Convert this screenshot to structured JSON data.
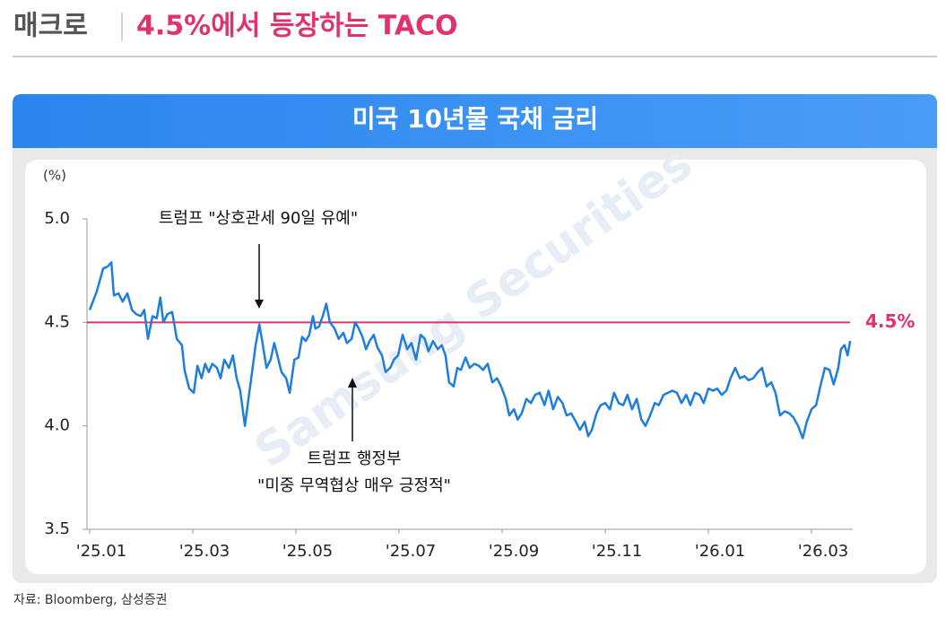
{
  "header": {
    "section": "매크로",
    "title": "4.5%에서 등장하는 TACO"
  },
  "chart_data": {
    "type": "line",
    "title": "미국 10년물 국채 금리",
    "y_unit": "(%)",
    "color": "#1f7de0",
    "x": [
      0.0,
      0.14,
      0.26,
      0.35,
      0.42,
      0.47,
      0.56,
      0.64,
      0.73,
      0.82,
      0.9,
      0.99,
      1.06,
      1.13,
      1.22,
      1.3,
      1.37,
      1.43,
      1.51,
      1.6,
      1.69,
      1.79,
      1.84,
      1.93,
      2.02,
      2.09,
      2.17,
      2.24,
      2.31,
      2.38,
      2.47,
      2.54,
      2.61,
      2.7,
      2.78,
      2.85,
      2.92,
      3.01,
      3.08,
      3.15,
      3.22,
      3.29,
      3.34,
      3.43,
      3.51,
      3.58,
      3.65,
      3.72,
      3.81,
      3.88,
      3.97,
      4.05,
      4.12,
      4.19,
      4.26,
      4.33,
      4.38,
      4.45,
      4.52,
      4.59,
      4.66,
      4.75,
      4.83,
      4.92,
      4.99,
      5.08,
      5.15,
      5.22,
      5.29,
      5.36,
      5.43,
      5.51,
      5.58,
      5.67,
      5.74,
      5.83,
      5.9,
      5.98,
      6.07,
      6.16,
      6.24,
      6.33,
      6.42,
      6.5,
      6.57,
      6.66,
      6.75,
      6.83,
      6.9,
      6.97,
      7.06,
      7.13,
      7.2,
      7.29,
      7.37,
      7.46,
      7.55,
      7.63,
      7.72,
      7.81,
      7.9,
      7.98,
      8.07,
      8.14,
      8.23,
      8.3,
      8.38,
      8.47,
      8.56,
      8.64,
      8.73,
      8.82,
      8.9,
      8.99,
      9.08,
      9.17,
      9.25,
      9.34,
      9.43,
      9.51,
      9.6,
      9.67,
      9.74,
      9.83,
      9.91,
      10.0,
      10.09,
      10.17,
      10.26,
      10.35,
      10.43,
      10.52,
      10.61,
      10.7,
      10.78,
      10.87,
      10.96,
      11.04,
      11.13,
      11.22,
      11.3,
      11.39,
      11.48,
      11.57,
      11.65,
      11.74,
      11.83,
      11.91,
      12.0,
      12.09,
      12.17,
      12.26,
      12.35,
      12.43,
      12.52,
      12.61,
      12.7,
      12.78,
      12.87,
      12.96,
      13.04,
      13.13,
      13.22,
      13.3,
      13.39,
      13.48,
      13.57,
      13.65,
      13.74,
      13.83,
      13.91,
      14.0,
      14.09,
      14.17,
      14.26,
      14.35,
      14.43,
      14.52,
      14.57,
      14.64,
      14.7,
      14.75
    ],
    "values": [
      4.56,
      4.65,
      4.76,
      4.77,
      4.79,
      4.63,
      4.64,
      4.6,
      4.64,
      4.56,
      4.54,
      4.53,
      4.56,
      4.42,
      4.53,
      4.52,
      4.62,
      4.5,
      4.54,
      4.55,
      4.42,
      4.39,
      4.27,
      4.18,
      4.16,
      4.29,
      4.23,
      4.3,
      4.26,
      4.3,
      4.28,
      4.23,
      4.32,
      4.28,
      4.34,
      4.23,
      4.17,
      4.0,
      4.13,
      4.26,
      4.39,
      4.49,
      4.42,
      4.28,
      4.32,
      4.4,
      4.33,
      4.26,
      4.23,
      4.16,
      4.32,
      4.33,
      4.43,
      4.41,
      4.44,
      4.53,
      4.47,
      4.48,
      4.53,
      4.59,
      4.5,
      4.47,
      4.42,
      4.45,
      4.4,
      4.42,
      4.5,
      4.47,
      4.43,
      4.37,
      4.41,
      4.44,
      4.38,
      4.34,
      4.26,
      4.28,
      4.32,
      4.34,
      4.44,
      4.37,
      4.4,
      4.32,
      4.44,
      4.42,
      4.36,
      4.41,
      4.37,
      4.39,
      4.34,
      4.21,
      4.19,
      4.28,
      4.27,
      4.33,
      4.28,
      4.3,
      4.29,
      4.27,
      4.3,
      4.21,
      4.23,
      4.19,
      4.13,
      4.05,
      4.08,
      4.03,
      4.06,
      4.13,
      4.11,
      4.15,
      4.16,
      4.1,
      4.17,
      4.08,
      4.14,
      4.11,
      4.05,
      4.06,
      4.02,
      3.98,
      4.02,
      3.95,
      3.98,
      4.06,
      4.1,
      4.11,
      4.08,
      4.16,
      4.11,
      4.1,
      4.15,
      4.08,
      4.13,
      4.03,
      4.0,
      4.05,
      4.11,
      4.1,
      4.15,
      4.16,
      4.17,
      4.16,
      4.11,
      4.15,
      4.1,
      4.16,
      4.15,
      4.11,
      4.18,
      4.17,
      4.18,
      4.15,
      4.17,
      4.23,
      4.28,
      4.23,
      4.24,
      4.22,
      4.23,
      4.26,
      4.28,
      4.19,
      4.21,
      4.16,
      4.05,
      4.07,
      4.06,
      4.04,
      4.0,
      3.94,
      4.02,
      4.08,
      4.1,
      4.19,
      4.28,
      4.27,
      4.2,
      4.28,
      4.37,
      4.39,
      4.34,
      4.41
    ],
    "xlim": [
      0,
      14.8
    ],
    "xticks": [
      {
        "value": 0,
        "label": "'25.01"
      },
      {
        "value": 2,
        "label": "'25.03"
      },
      {
        "value": 4,
        "label": "'25.05"
      },
      {
        "value": 6,
        "label": "'25.07"
      },
      {
        "value": 8,
        "label": "'25.09"
      },
      {
        "value": 10,
        "label": "'25.11"
      },
      {
        "value": 12,
        "label": "'26.01"
      },
      {
        "value": 14,
        "label": "'26.03"
      }
    ],
    "ylim": [
      3.5,
      5
    ],
    "yticks": [
      3.5,
      {
        "value": 4,
        "label": "4.0"
      },
      4.5,
      {
        "value": 5,
        "label": "5.0"
      }
    ],
    "reference_line": {
      "value": 4.5,
      "label": "4.5%",
      "color": "#e0336b"
    },
    "annotations": [
      "트럼프 \"상호관세 90일 유예\"",
      "트럼프 행정부",
      "\"미중 무역협상 매우 긍정적\""
    ],
    "watermark": "Samsung Securities"
  },
  "source": "자료: Bloomberg, 삼성증권"
}
